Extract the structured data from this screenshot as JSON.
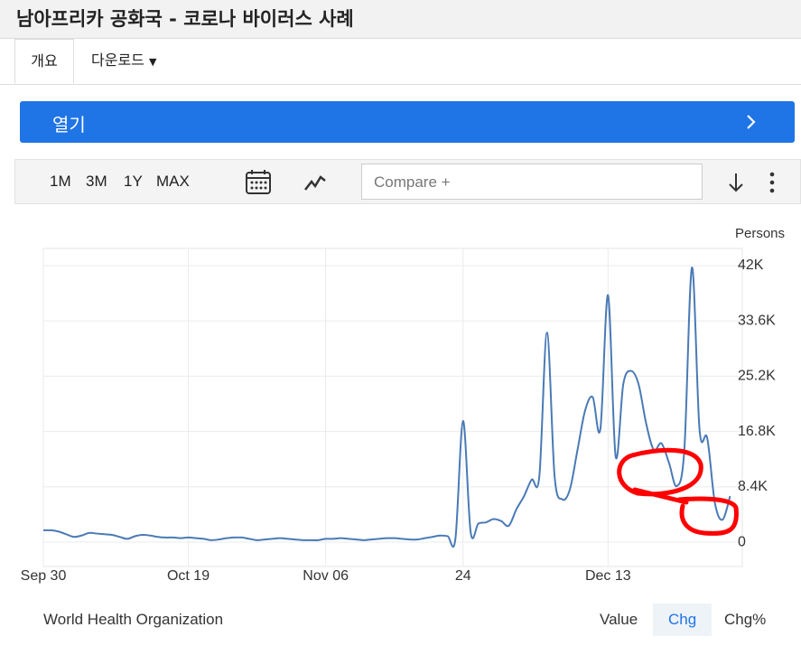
{
  "header": {
    "title": "남아프리카 공화국 - 코로나 바이러스 사례"
  },
  "tabs": [
    "개요",
    "다운로드"
  ],
  "open_button": "열기",
  "toolbar": {
    "ranges": [
      "1M",
      "3M",
      "1Y",
      "MAX"
    ],
    "compare_placeholder": "Compare +"
  },
  "chart_data": {
    "type": "line",
    "y_label": "Persons",
    "categories": [
      "Sep 30",
      null,
      null,
      null,
      null,
      null,
      null,
      null,
      null,
      null,
      null,
      null,
      null,
      null,
      null,
      null,
      null,
      null,
      null,
      "Oct 19",
      null,
      null,
      null,
      null,
      null,
      null,
      null,
      null,
      null,
      null,
      null,
      null,
      null,
      null,
      null,
      null,
      null,
      "Nov 06",
      null,
      null,
      null,
      null,
      null,
      null,
      null,
      null,
      null,
      null,
      null,
      null,
      null,
      null,
      null,
      null,
      null,
      "24",
      null,
      null,
      null,
      null,
      null,
      null,
      null,
      null,
      null,
      null,
      null,
      null,
      null,
      null,
      null,
      null,
      null,
      null,
      "Dec 13",
      null,
      null,
      null,
      null,
      null,
      null,
      null,
      null,
      null,
      null,
      null,
      null,
      null,
      null,
      null,
      null
    ],
    "series": [
      {
        "name": "Persons",
        "color": "#4a7ab5",
        "values": [
          1800,
          1800,
          1600,
          1200,
          800,
          1000,
          1400,
          1300,
          1200,
          1100,
          800,
          500,
          900,
          1100,
          1000,
          800,
          700,
          700,
          600,
          700,
          600,
          500,
          300,
          400,
          600,
          700,
          700,
          500,
          300,
          400,
          500,
          600,
          500,
          400,
          300,
          300,
          300,
          500,
          500,
          600,
          500,
          400,
          300,
          400,
          500,
          600,
          600,
          500,
          400,
          400,
          600,
          800,
          1000,
          900,
          500,
          18400,
          1500,
          2800,
          3000,
          3500,
          3200,
          2500,
          5000,
          7000,
          9500,
          10000,
          31800,
          10000,
          6500,
          8000,
          14000,
          20000,
          22000,
          17200,
          37500,
          13000,
          24000,
          26000,
          24000,
          18000,
          14000,
          15000,
          12000,
          8500,
          14000,
          41700,
          17000,
          15800,
          6000,
          3400,
          7000
        ]
      }
    ],
    "ylim": [
      -3700,
      44600
    ],
    "yticks": [
      0,
      {
        "value": 8400,
        "label": "8.4K"
      },
      {
        "value": 16800,
        "label": "16.8K"
      },
      {
        "value": 25200,
        "label": "25.2K"
      },
      {
        "value": 33600,
        "label": "33.6K"
      },
      {
        "value": 42000,
        "label": "42K"
      }
    ],
    "grid": true
  },
  "source": "World Health Organization",
  "modes": [
    "Value",
    "Chg",
    "Chg%"
  ]
}
